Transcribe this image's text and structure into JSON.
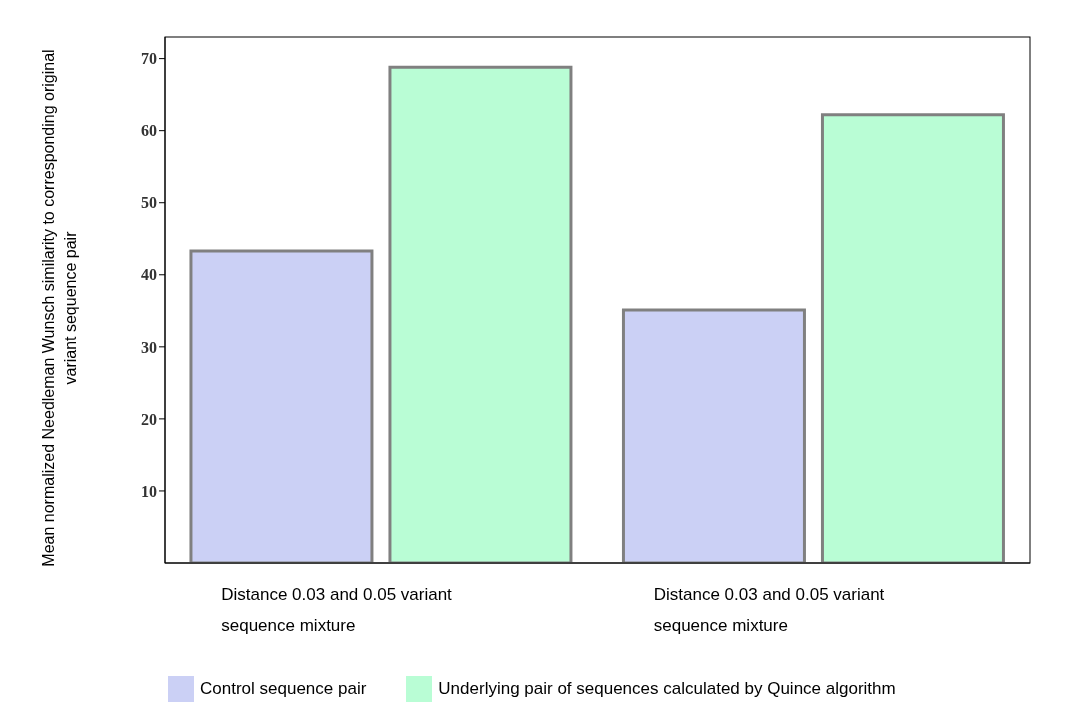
{
  "chart_data": {
    "type": "bar",
    "ylabel": "Mean normalized Needleman Wunsch similarity to corresponding original variant sequence pair",
    "categories": [
      "Distance 0.03 and 0.05 variant sequence mixture",
      "Distance 0.03 and 0.05 variant sequence mixture"
    ],
    "series": [
      {
        "name": "Control sequence pair",
        "color": "#cbd0f5",
        "values": [
          43.3,
          35.1
        ]
      },
      {
        "name": "Underlying pair of sequences calculated by Quince algorithm",
        "color": "#b9fdd5",
        "values": [
          68.8,
          62.2
        ]
      }
    ],
    "ylim": [
      0,
      73
    ],
    "yticks": [
      10,
      20,
      30,
      40,
      50,
      60,
      70
    ],
    "legend": "bottom"
  }
}
